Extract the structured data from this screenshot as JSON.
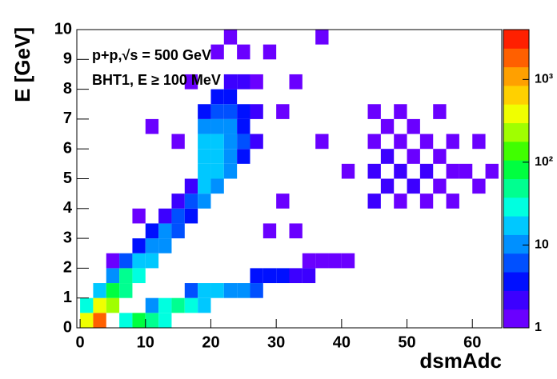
{
  "chart_data": {
    "type": "heatmap",
    "x_label": "dsmAdc",
    "y_label": "E [GeV]",
    "annotations": [
      "p+p,√s = 500 GeV",
      "BHT1, E ≥ 100 MeV"
    ],
    "xlim": [
      -0.5,
      64.5
    ],
    "ylim": [
      0,
      10
    ],
    "xticks": [
      0,
      10,
      20,
      30,
      40,
      50,
      60
    ],
    "yticks": [
      0,
      1,
      2,
      3,
      4,
      5,
      6,
      7,
      8,
      9,
      10
    ],
    "zlim": [
      1,
      4000
    ],
    "zlog": true,
    "zticks": [
      1,
      10,
      {
        "value": 100,
        "label": "10²"
      },
      {
        "value": 1000,
        "label": "10³"
      }
    ],
    "xbin": 2,
    "ybin": 0.5,
    "palette": [
      "#6a00ff",
      "#3c00ff",
      "#0010ff",
      "#0050ff",
      "#0090ff",
      "#00c8ff",
      "#00ffe0",
      "#00ff90",
      "#00ff40",
      "#40ff00",
      "#a0ff00",
      "#f0ff00",
      "#ffd000",
      "#ffa000",
      "#ff6000",
      "#ff2000"
    ],
    "cells": [
      [
        0,
        0,
        300
      ],
      [
        0,
        0.5,
        30
      ],
      [
        2,
        0,
        2000
      ],
      [
        2,
        0.5,
        300
      ],
      [
        2,
        1,
        20
      ],
      [
        4,
        0.5,
        200
      ],
      [
        4,
        1,
        100
      ],
      [
        4,
        1.5,
        10
      ],
      [
        6,
        1,
        60
      ],
      [
        6,
        1.5,
        40
      ],
      [
        6,
        2,
        5
      ],
      [
        8,
        1.5,
        30
      ],
      [
        8,
        2,
        20
      ],
      [
        8,
        2.5,
        4
      ],
      [
        10,
        2,
        15
      ],
      [
        10,
        2.5,
        10
      ],
      [
        10,
        3,
        3
      ],
      [
        12,
        2.5,
        8
      ],
      [
        12,
        3,
        8
      ],
      [
        12,
        3.5,
        2
      ],
      [
        14,
        3,
        5
      ],
      [
        14,
        3.5,
        6
      ],
      [
        14,
        4,
        2
      ],
      [
        16,
        3.5,
        4
      ],
      [
        16,
        4,
        5
      ],
      [
        16,
        4.5,
        2
      ],
      [
        18,
        4,
        8
      ],
      [
        18,
        4.5,
        15
      ],
      [
        18,
        5,
        20
      ],
      [
        18,
        5.5,
        20
      ],
      [
        18,
        6,
        15
      ],
      [
        18,
        6.5,
        8
      ],
      [
        18,
        7,
        3
      ],
      [
        20,
        4.5,
        10
      ],
      [
        20,
        5,
        20
      ],
      [
        20,
        5.5,
        18
      ],
      [
        20,
        6,
        15
      ],
      [
        20,
        6.5,
        10
      ],
      [
        20,
        7,
        6
      ],
      [
        20,
        7.5,
        3
      ],
      [
        22,
        5,
        8
      ],
      [
        22,
        5.5,
        10
      ],
      [
        22,
        6,
        10
      ],
      [
        22,
        6.5,
        8
      ],
      [
        22,
        7,
        5
      ],
      [
        22,
        7.5,
        3
      ],
      [
        22,
        8,
        2
      ],
      [
        24,
        5.5,
        4
      ],
      [
        24,
        6,
        5
      ],
      [
        24,
        6.5,
        4
      ],
      [
        24,
        7,
        3
      ],
      [
        24,
        8,
        2
      ],
      [
        26,
        6,
        2
      ],
      [
        26,
        7,
        2
      ],
      [
        26,
        8,
        1
      ],
      [
        6,
        0,
        30
      ],
      [
        8,
        0,
        80
      ],
      [
        10,
        0,
        60
      ],
      [
        10,
        0.5,
        10
      ],
      [
        12,
        0,
        30
      ],
      [
        12,
        0.5,
        30
      ],
      [
        14,
        0.5,
        40
      ],
      [
        16,
        0.5,
        30
      ],
      [
        16,
        1,
        5
      ],
      [
        18,
        0.5,
        20
      ],
      [
        18,
        1,
        15
      ],
      [
        20,
        1,
        15
      ],
      [
        22,
        1,
        12
      ],
      [
        24,
        1,
        8
      ],
      [
        26,
        1,
        5
      ],
      [
        26,
        1.5,
        3
      ],
      [
        28,
        1.5,
        4
      ],
      [
        30,
        1.5,
        3
      ],
      [
        32,
        1.5,
        2
      ],
      [
        34,
        1.5,
        2
      ],
      [
        34,
        2,
        1
      ],
      [
        36,
        2,
        1
      ],
      [
        38,
        2,
        1
      ],
      [
        40,
        2,
        1
      ],
      [
        28,
        3,
        1
      ],
      [
        28,
        9,
        1
      ],
      [
        30,
        4,
        1
      ],
      [
        30,
        7,
        1
      ],
      [
        32,
        8,
        1
      ],
      [
        32,
        3,
        1
      ],
      [
        36,
        6,
        1
      ],
      [
        36,
        9.5,
        1
      ],
      [
        40,
        5,
        1
      ],
      [
        44,
        4,
        2
      ],
      [
        44,
        5,
        2
      ],
      [
        44,
        6,
        1
      ],
      [
        44,
        7,
        1
      ],
      [
        46,
        4.5,
        2
      ],
      [
        46,
        5.5,
        2
      ],
      [
        46,
        6.5,
        1
      ],
      [
        48,
        4,
        1
      ],
      [
        48,
        5,
        2
      ],
      [
        48,
        6,
        1
      ],
      [
        48,
        7,
        1
      ],
      [
        50,
        4.5,
        2
      ],
      [
        50,
        5.5,
        1
      ],
      [
        50,
        6.5,
        1
      ],
      [
        52,
        4,
        1
      ],
      [
        52,
        5,
        2
      ],
      [
        52,
        6,
        1
      ],
      [
        54,
        4.5,
        1
      ],
      [
        54,
        5.5,
        1
      ],
      [
        54,
        7,
        1
      ],
      [
        56,
        4,
        1
      ],
      [
        56,
        5,
        1
      ],
      [
        56,
        6,
        1
      ],
      [
        58,
        5,
        1
      ],
      [
        60,
        4.5,
        1
      ],
      [
        60,
        6,
        1
      ],
      [
        62,
        5,
        1
      ],
      [
        4,
        2,
        1
      ],
      [
        8,
        3.5,
        1
      ],
      [
        14,
        6,
        1
      ],
      [
        16,
        8,
        1
      ],
      [
        10,
        6.5,
        1
      ],
      [
        24,
        9,
        1
      ],
      [
        22,
        9.5,
        1
      ],
      [
        20,
        9,
        1
      ]
    ]
  }
}
